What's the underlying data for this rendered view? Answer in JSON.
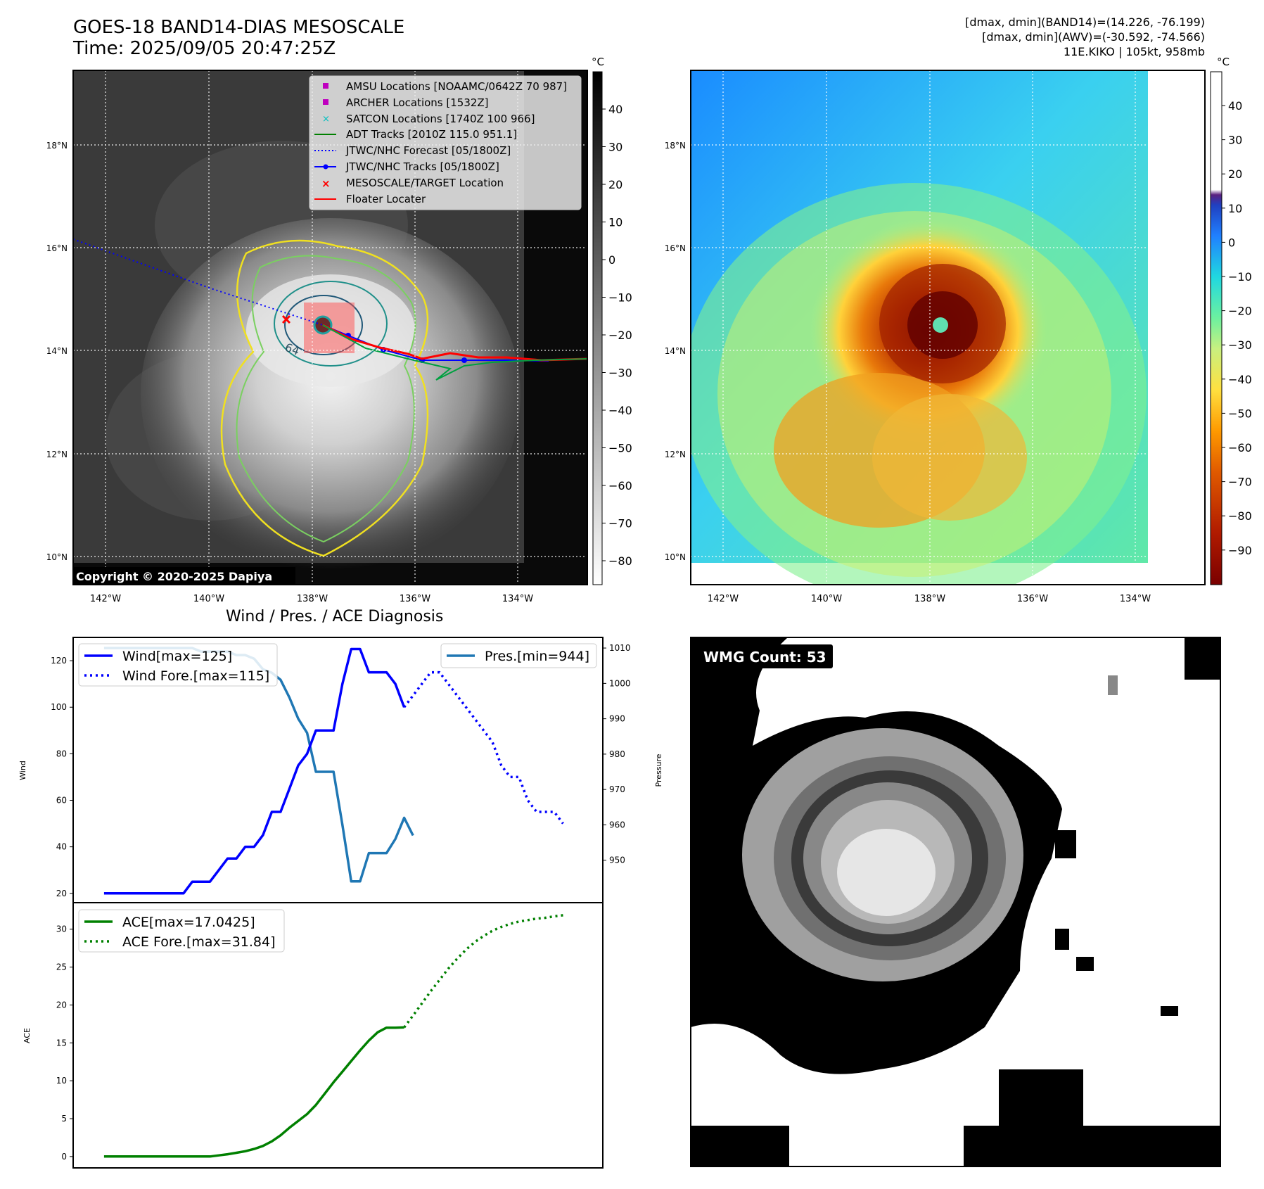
{
  "header": {
    "title": "GOES-18 BAND14-DIAS MESOSCALE",
    "time": "Time: 2025/09/05 20:47:25Z",
    "info_line1": "[dmax, dmin](BAND14)=(14.226, -76.199)",
    "info_line2": "[dmax, dmin](AWV)=(-30.592, -74.566)",
    "info_line3": "11E.KIKO | 105kt, 958mb"
  },
  "map_panels": {
    "lat_ticks": [
      "18°N",
      "16°N",
      "14°N",
      "12°N",
      "10°N"
    ],
    "lon_ticks": [
      "142°W",
      "140°W",
      "138°W",
      "136°W",
      "134°W"
    ],
    "contour_label": "64",
    "copyright": "Copyright © 2020-2025 Dapiya",
    "colorbar_unit": "°C",
    "gray_colorbar_ticks": [
      "40",
      "30",
      "20",
      "10",
      "0",
      "−10",
      "−20",
      "−30",
      "−40",
      "−50",
      "−60",
      "−70",
      "−80"
    ],
    "color_colorbar_ticks": [
      "40",
      "30",
      "20",
      "10",
      "0",
      "−10",
      "−20",
      "−30",
      "−40",
      "−50",
      "−60",
      "−70",
      "−80",
      "−90"
    ],
    "legend": [
      {
        "label": "AMSU Locations [NOAAMC/0642Z 70 987]",
        "symbol": "square",
        "color": "#bf00bf"
      },
      {
        "label": "ARCHER Locations [1532Z]",
        "symbol": "square",
        "color": "#bf00bf"
      },
      {
        "label": "SATCON Locations [1740Z 100 966]",
        "symbol": "x",
        "color": "#00bfbf"
      },
      {
        "label": "ADT Tracks [2010Z 115.0 951.1]",
        "symbol": "line",
        "color": "#008000"
      },
      {
        "label": "JTWC/NHC Forecast [05/1800Z]",
        "symbol": "dotted",
        "color": "#0000ff"
      },
      {
        "label": "JTWC/NHC Tracks [05/1800Z]",
        "symbol": "line-dot",
        "color": "#0000ff"
      },
      {
        "label": "MESOSCALE/TARGET Location",
        "symbol": "x",
        "color": "#ff0000"
      },
      {
        "label": "Floater Locater",
        "symbol": "line",
        "color": "#ff0000"
      }
    ]
  },
  "diagnosis": {
    "title": "Wind / Pres. / ACE Diagnosis",
    "wind_ylabel": "Wind",
    "pres_ylabel": "Pressure",
    "ace_ylabel": "ACE",
    "legend_wind": "Wind[max=125]",
    "legend_wind_fore": "Wind Fore.[max=115]",
    "legend_pres": "Pres.[min=944]",
    "legend_ace": "ACE[max=17.0425]",
    "legend_ace_fore": "ACE Fore.[max=31.84]"
  },
  "wmg": {
    "label": "WMG Count: 53"
  },
  "chart_data": [
    {
      "type": "line",
      "title": "Wind / Pres. / ACE Diagnosis",
      "ylabel": "Wind",
      "ylim": [
        16,
        130
      ],
      "y_ticks": [
        20,
        40,
        60,
        80,
        100,
        120
      ],
      "x": [
        0,
        1,
        2,
        3,
        4,
        5,
        6,
        7,
        8,
        9,
        10,
        11,
        12,
        13,
        14,
        15,
        16,
        17,
        18,
        19,
        20,
        21,
        22,
        23,
        24,
        25,
        26,
        27,
        28,
        29,
        30,
        31,
        32,
        33,
        34,
        35,
        36,
        37,
        38,
        39,
        40,
        41,
        42,
        43,
        44,
        45,
        46,
        47,
        48,
        49,
        50,
        51,
        52
      ],
      "series": [
        {
          "name": "Wind[max=125]",
          "color": "#0000ff",
          "style": "solid",
          "x": [
            0,
            1,
            2,
            3,
            4,
            5,
            6,
            7,
            8,
            9,
            10,
            11,
            12,
            13,
            14,
            15,
            16,
            17,
            18,
            19,
            20,
            21,
            22,
            23,
            24,
            25,
            26,
            27,
            28,
            29,
            30,
            31,
            32,
            33,
            34
          ],
          "values": [
            20,
            20,
            20,
            20,
            20,
            20,
            20,
            20,
            20,
            20,
            25,
            25,
            25,
            30,
            35,
            35,
            40,
            40,
            45,
            55,
            55,
            65,
            75,
            80,
            90,
            90,
            90,
            110,
            125,
            125,
            115,
            115,
            115,
            110,
            100
          ]
        },
        {
          "name": "Wind Fore.[max=115]",
          "color": "#0000ff",
          "style": "dotted",
          "x": [
            34,
            35,
            36,
            37,
            38,
            39,
            40,
            41,
            42,
            43,
            44,
            45,
            46,
            47,
            48,
            49,
            50,
            51,
            52
          ],
          "values": [
            100,
            105,
            110,
            115,
            115,
            110,
            105,
            100,
            95,
            90,
            85,
            75,
            70,
            70,
            60,
            55,
            55,
            55,
            50
          ]
        }
      ]
    },
    {
      "type": "line",
      "ylabel": "Pressure",
      "ylim": [
        938,
        1013
      ],
      "y_ticks": [
        950,
        960,
        970,
        980,
        990,
        1000,
        1010
      ],
      "series": [
        {
          "name": "Pres.[min=944]",
          "color": "#1f77b4",
          "style": "solid",
          "x": [
            0,
            1,
            2,
            3,
            4,
            5,
            6,
            7,
            8,
            9,
            10,
            11,
            12,
            13,
            14,
            15,
            16,
            17,
            18,
            19,
            20,
            21,
            22,
            23,
            24,
            25,
            26,
            27,
            28,
            29,
            30,
            31,
            32,
            33,
            34,
            35
          ],
          "values": [
            1010,
            1010,
            1010,
            1010,
            1010,
            1010,
            1010,
            1010,
            1010,
            1010,
            1010,
            1009,
            1009,
            1009,
            1009,
            1008,
            1008,
            1007,
            1004,
            1003,
            1001,
            996,
            990,
            986,
            975,
            975,
            975,
            960,
            944,
            944,
            952,
            952,
            952,
            956,
            962,
            957
          ]
        }
      ]
    },
    {
      "type": "line",
      "ylabel": "ACE",
      "ylim": [
        -1.5,
        33.5
      ],
      "y_ticks": [
        0,
        5,
        10,
        15,
        20,
        25,
        30
      ],
      "series": [
        {
          "name": "ACE[max=17.0425]",
          "color": "#008000",
          "style": "solid",
          "x": [
            0,
            1,
            2,
            3,
            4,
            5,
            6,
            7,
            8,
            9,
            10,
            11,
            12,
            13,
            14,
            15,
            16,
            17,
            18,
            19,
            20,
            21,
            22,
            23,
            24,
            25,
            26,
            27,
            28,
            29,
            30,
            31,
            32,
            33,
            34
          ],
          "values": [
            0,
            0,
            0,
            0,
            0,
            0,
            0,
            0,
            0,
            0,
            0,
            0,
            0,
            0.15,
            0.3,
            0.5,
            0.7,
            1.0,
            1.4,
            2.0,
            2.8,
            3.8,
            4.7,
            5.6,
            6.8,
            8.3,
            9.8,
            11.2,
            12.6,
            14.0,
            15.3,
            16.4,
            17.0,
            17.0,
            17.04
          ]
        }
      ]
    },
    {
      "type": "line",
      "ylabel": "ACE",
      "series": [
        {
          "name": "ACE Fore.[max=31.84]",
          "color": "#008000",
          "style": "dotted",
          "x": [
            34,
            35,
            36,
            37,
            38,
            39,
            40,
            41,
            42,
            43,
            44,
            45,
            46,
            47,
            48,
            49,
            50,
            51,
            52
          ],
          "values": [
            17.04,
            18.6,
            20.2,
            21.8,
            23.3,
            24.8,
            26.1,
            27.3,
            28.3,
            29.1,
            29.8,
            30.3,
            30.7,
            31.0,
            31.2,
            31.4,
            31.5,
            31.7,
            31.84
          ]
        }
      ]
    }
  ]
}
